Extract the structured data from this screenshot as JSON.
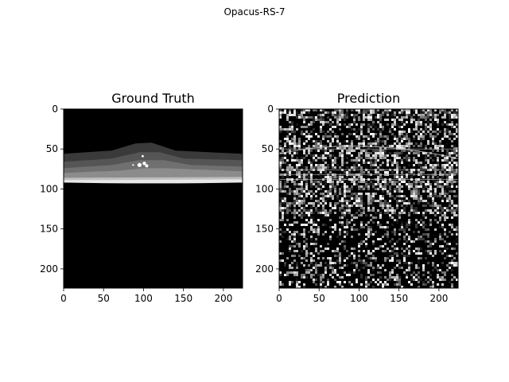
{
  "figure": {
    "suptitle": "Opacus-RS-7"
  },
  "panels": [
    {
      "title": "Ground Truth",
      "x_ticks": [
        "0",
        "50",
        "100",
        "150",
        "200"
      ],
      "y_ticks": [
        "0",
        "50",
        "100",
        "150",
        "200"
      ],
      "x_tick_values": [
        0,
        50,
        100,
        150,
        200
      ],
      "y_tick_values": [
        0,
        50,
        100,
        150,
        200
      ],
      "extent": [
        0,
        224
      ]
    },
    {
      "title": "Prediction",
      "x_ticks": [
        "0",
        "50",
        "100",
        "150",
        "200"
      ],
      "y_ticks": [
        "0",
        "50",
        "100",
        "150",
        "200"
      ],
      "x_tick_values": [
        0,
        50,
        100,
        150,
        200
      ],
      "y_tick_values": [
        0,
        50,
        100,
        150,
        200
      ],
      "extent": [
        0,
        224
      ]
    }
  ],
  "colors": {
    "background": "#ffffff",
    "image_base": "#000000",
    "axis": "#000000"
  }
}
